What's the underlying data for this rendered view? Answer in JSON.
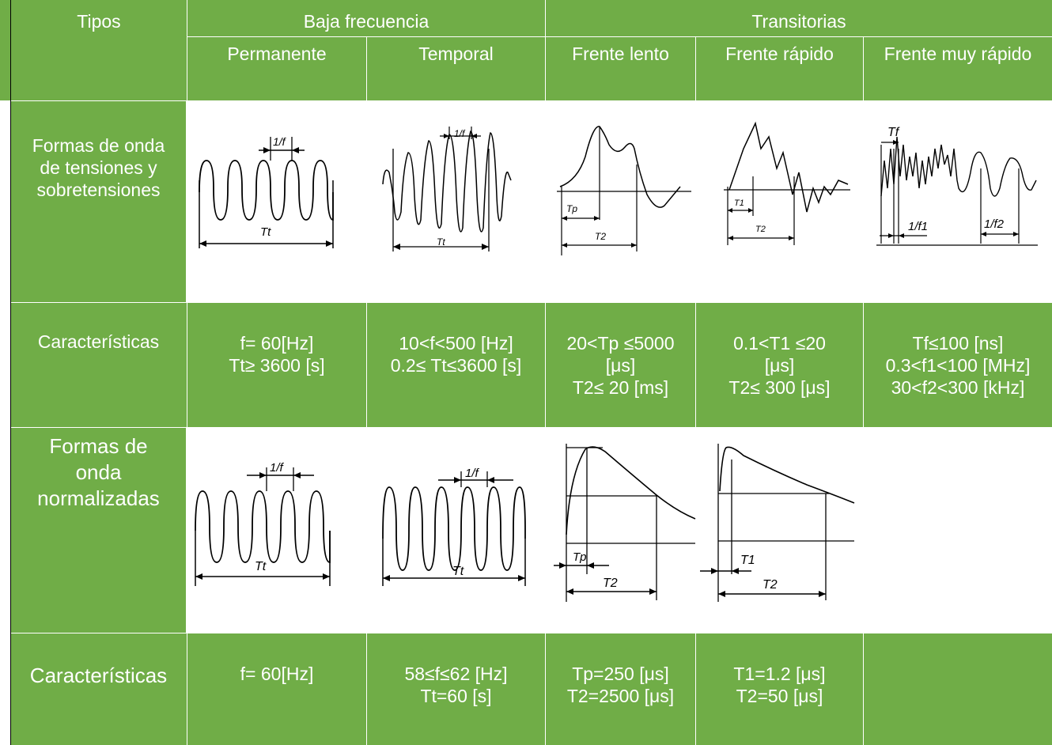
{
  "header": {
    "tipos": "Tipos",
    "baja_frecuencia": "Baja frecuencia",
    "transitorias": "Transitorias",
    "permanente": "Permanente",
    "temporal": "Temporal",
    "frente_lento": "Frente lento",
    "frente_rapido": "Frente rápido",
    "frente_muy_rapido": "Frente muy rápido"
  },
  "rows": {
    "formas_onda_label": [
      "Formas de onda",
      "de tensiones y",
      "sobretensiones"
    ],
    "caracteristicas_label": "Características",
    "normalizadas_label": [
      "Formas de",
      "onda",
      "normalizadas"
    ],
    "caracteristicas2_label": "Características"
  },
  "characteristics": {
    "permanente": [
      "f= 60[Hz]",
      "Tt≥ 3600 [s]"
    ],
    "temporal": [
      "10<f<500 [Hz]",
      "0.2≤ Tt≤3600 [s]"
    ],
    "frente_lento": [
      "20<Tp ≤5000",
      "[μs]",
      "T2≤ 20 [ms]"
    ],
    "frente_rapido": [
      "0.1<T1 ≤20",
      "[μs]",
      "T2≤ 300 [μs]"
    ],
    "frente_muy_rapido": [
      "Tf≤100 [ns]",
      "0.3<f1<100 [MHz]",
      "30<f2<300 [kHz]"
    ]
  },
  "characteristics_norm": {
    "permanente": [
      "f= 60[Hz]"
    ],
    "temporal": [
      "58≤f≤62 [Hz]",
      "Tt=60 [s]"
    ],
    "frente_lento": [
      "Tp=250 [μs]",
      "T2=2500 [μs]"
    ],
    "frente_rapido": [
      "T1=1.2 [μs]",
      "T2=50 [μs]"
    ]
  },
  "figure_labels": {
    "one_over_f": "1/f",
    "Tt": "Tt",
    "Tp": "Tp",
    "T1": "T1",
    "T2": "T2",
    "Tf": "Tf",
    "one_over_f1": "1/f1",
    "one_over_f2": "1/f2"
  },
  "colors": {
    "table_green": "#70ad47",
    "text": "#ffffff",
    "line": "#000000"
  }
}
